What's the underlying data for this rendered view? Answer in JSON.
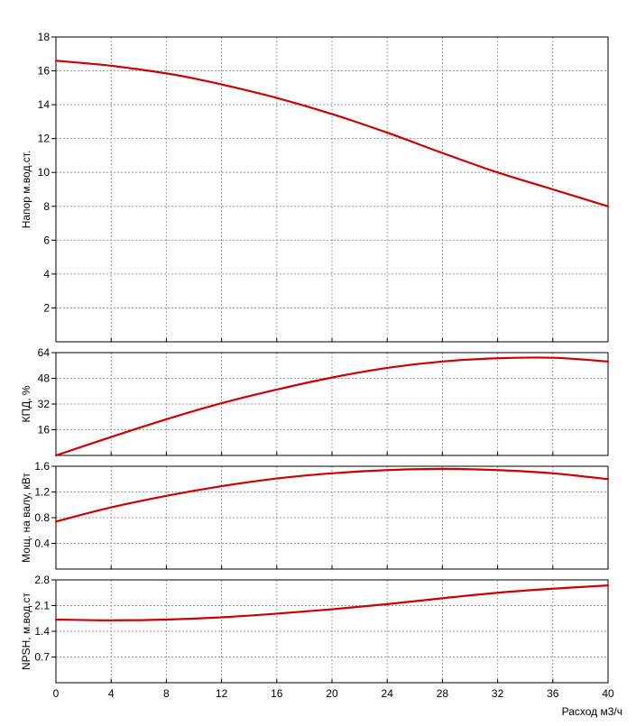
{
  "chart_data": {
    "type": "line",
    "x_label": "Расход м3/ч",
    "x_range": [
      0,
      40
    ],
    "x_ticks": [
      "0",
      "4",
      "8",
      "12",
      "16",
      "20",
      "24",
      "28",
      "32",
      "36",
      "40"
    ],
    "grid": true,
    "line_color": "#cc0000",
    "panels": [
      {
        "ylabel": "Напор м.вод.ст.",
        "ylim": [
          0,
          18
        ],
        "y_ticks": [
          "2",
          "4",
          "6",
          "8",
          "10",
          "12",
          "14",
          "16",
          "18"
        ],
        "x": [
          0,
          4,
          8,
          10,
          12,
          16,
          20,
          24,
          28,
          32,
          36,
          40
        ],
        "y": [
          16.6,
          16.3,
          15.85,
          15.55,
          15.2,
          14.4,
          13.45,
          12.35,
          11.15,
          10.0,
          9.0,
          8.0
        ]
      },
      {
        "ylabel": "КПД, %",
        "ylim": [
          0,
          64
        ],
        "y_ticks": [
          "16",
          "32",
          "48",
          "64"
        ],
        "x": [
          0,
          4,
          8,
          12,
          16,
          20,
          24,
          28,
          32,
          36,
          40
        ],
        "y": [
          0,
          11.5,
          22.5,
          32.5,
          41,
          48.5,
          54.5,
          58.5,
          60.5,
          60.8,
          58.5
        ]
      },
      {
        "ylabel": "Мощ. на валу, кВт",
        "ylim": [
          0,
          1.6
        ],
        "y_ticks": [
          "0.4",
          "0.8",
          "1.2",
          "1.6"
        ],
        "x": [
          0,
          4,
          8,
          12,
          16,
          20,
          24,
          28,
          32,
          36,
          40
        ],
        "y": [
          0.74,
          0.96,
          1.14,
          1.29,
          1.41,
          1.49,
          1.54,
          1.56,
          1.54,
          1.49,
          1.4
        ]
      },
      {
        "ylabel": "NPSH, м.вод.ст",
        "ylim": [
          0,
          2.8
        ],
        "y_ticks": [
          "0.7",
          "1.4",
          "2.1",
          "2.8"
        ],
        "x": [
          0,
          4,
          8,
          12,
          16,
          20,
          24,
          28,
          32,
          36,
          40
        ],
        "y": [
          1.72,
          1.7,
          1.72,
          1.78,
          1.88,
          2.0,
          2.14,
          2.3,
          2.45,
          2.56,
          2.65
        ]
      }
    ]
  }
}
